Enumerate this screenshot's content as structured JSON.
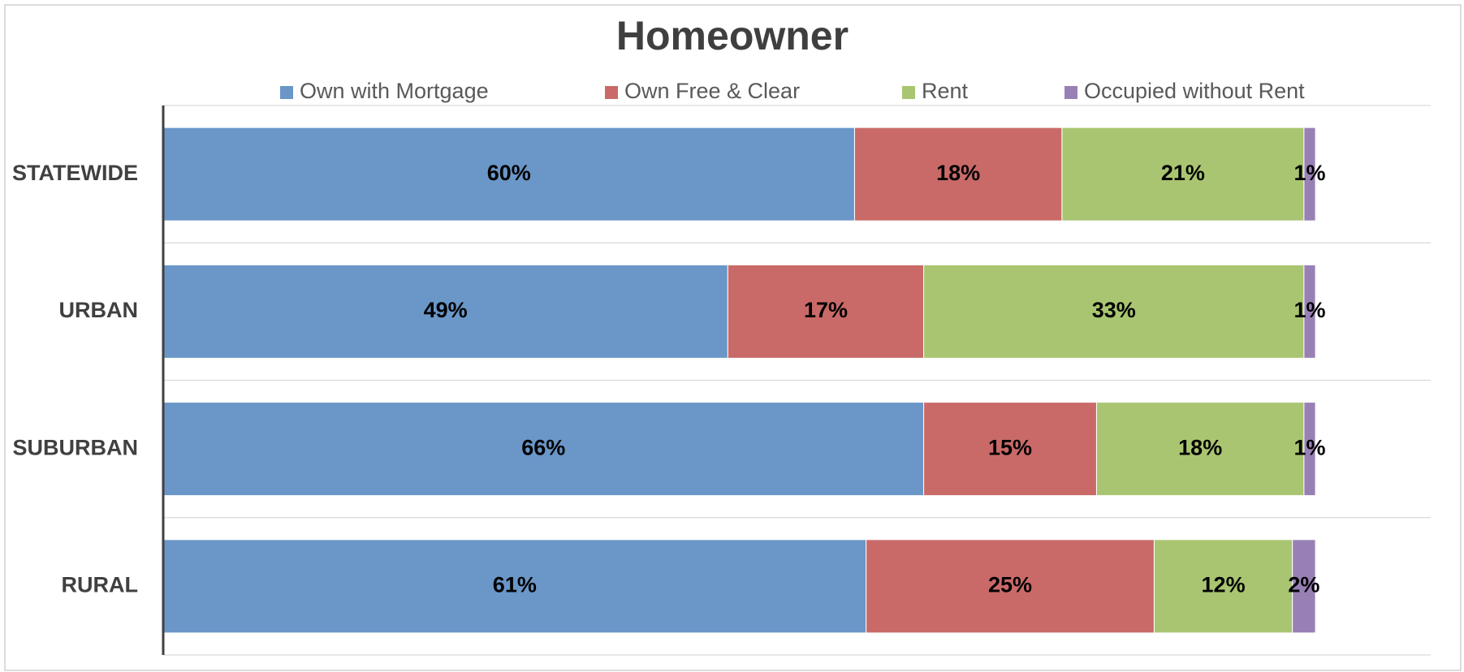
{
  "chart_data": {
    "type": "stacked-barh",
    "title": "Homeowner",
    "categories": [
      "STATEWIDE",
      "URBAN",
      "SUBURBAN",
      "RURAL"
    ],
    "series": [
      {
        "name": "Own with Mortgage",
        "color": "#6a96c8",
        "values": [
          60,
          49,
          66,
          61
        ],
        "value_labels": [
          "60%",
          "49%",
          "66%",
          "61%"
        ]
      },
      {
        "name": "Own Free & Clear",
        "color": "#c96a68",
        "values": [
          18,
          17,
          15,
          25
        ],
        "value_labels": [
          "18%",
          "17%",
          "15%",
          "25%"
        ]
      },
      {
        "name": "Rent",
        "color": "#a9c571",
        "values": [
          21,
          33,
          18,
          12
        ],
        "value_labels": [
          "21%",
          "33%",
          "18%",
          "12%"
        ]
      },
      {
        "name": "Occupied without Rent",
        "color": "#9880b5",
        "values": [
          1,
          1,
          1,
          2
        ],
        "value_labels": [
          "1%",
          "1%",
          "1%",
          "2%"
        ]
      }
    ],
    "xlim": [
      0,
      110
    ],
    "legend": "top"
  }
}
